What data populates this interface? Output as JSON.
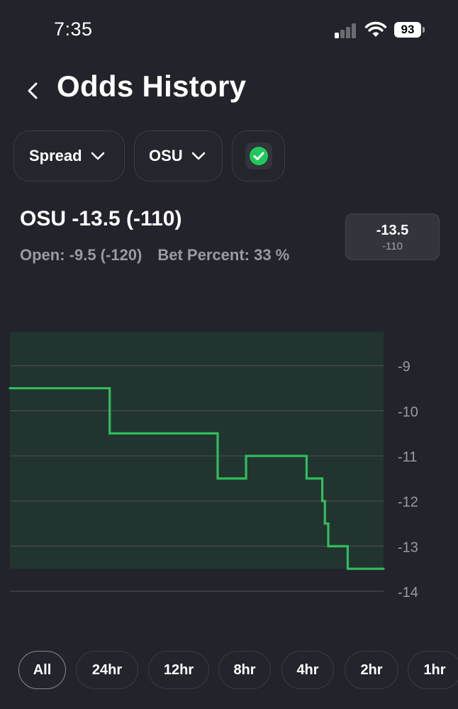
{
  "status_bar": {
    "time": "7:35",
    "battery": "93"
  },
  "header": {
    "title": "Odds History"
  },
  "filters": {
    "market": "Spread",
    "team": "OSU"
  },
  "line": {
    "title": "OSU -13.5 (-110)",
    "open": "Open: -9.5 (-120)",
    "bet_percent": "Bet Percent: 33 %",
    "current_spread": "-13.5",
    "current_odds": "-110"
  },
  "colors": {
    "background": "#23232b",
    "line": "#2fbd5c",
    "fill": "#22342f",
    "grid": "#4a4a52",
    "axis_text": "#9a9aa2"
  },
  "chart_data": {
    "type": "line",
    "step": true,
    "x": [
      0,
      1,
      2,
      3,
      4,
      5,
      6,
      7,
      8,
      9,
      10,
      11,
      12,
      13
    ],
    "series": [
      {
        "values": [
          -9.5,
          -10.5,
          -11.5,
          -11,
          -11.5,
          -12,
          -12.5,
          -13,
          -13,
          -13.5,
          -13.5,
          -13.5,
          -13.5,
          -13.5
        ]
      }
    ],
    "ylim": [
      -14,
      -8.25
    ],
    "yticks": [
      "-9",
      "-10",
      "-11",
      "-12",
      "-13",
      "-14"
    ],
    "grid": true,
    "y_axis_side": "right",
    "fill_under": true
  },
  "ranges": [
    "All",
    "24hr",
    "12hr",
    "8hr",
    "4hr",
    "2hr",
    "1hr"
  ],
  "selected_range": "All"
}
